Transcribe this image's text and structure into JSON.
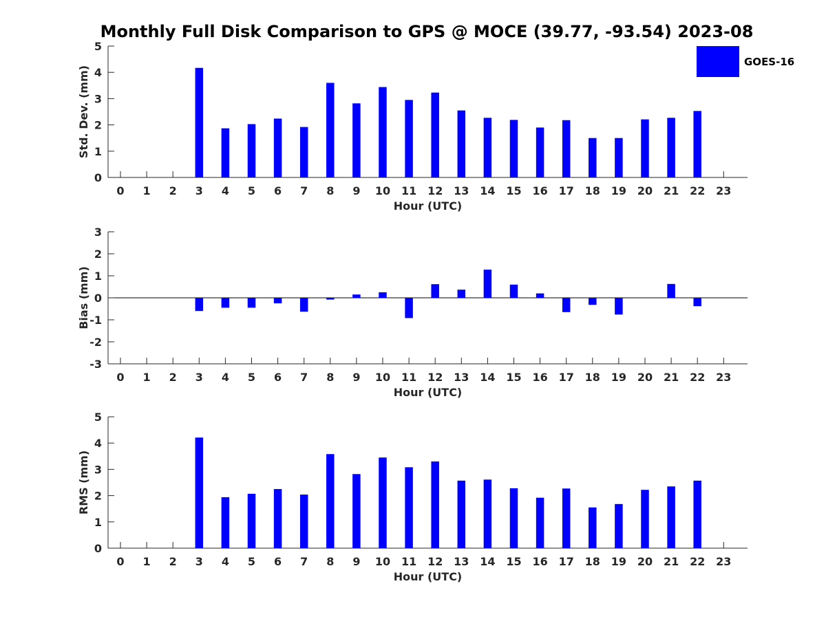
{
  "title": "Monthly Full Disk Comparison to GPS @ MOCE (39.77, -93.54) 2023-08",
  "legend": {
    "label": "GOES-16",
    "color": "#0000ff"
  },
  "chart_data": [
    {
      "type": "bar",
      "xlabel": "Hour (UTC)",
      "ylabel": "Std. Dev. (mm)",
      "ylim": [
        0,
        5
      ],
      "yticks": [
        0,
        1,
        2,
        3,
        4,
        5
      ],
      "categories": [
        0,
        1,
        2,
        3,
        4,
        5,
        6,
        7,
        8,
        9,
        10,
        11,
        12,
        13,
        14,
        15,
        16,
        17,
        18,
        19,
        20,
        21,
        22,
        23
      ],
      "series": [
        {
          "name": "GOES-16",
          "values": [
            null,
            null,
            null,
            4.17,
            1.87,
            2.03,
            2.24,
            1.92,
            3.6,
            2.82,
            3.44,
            2.95,
            3.23,
            2.55,
            2.27,
            2.19,
            1.9,
            2.18,
            1.5,
            1.5,
            2.21,
            2.27,
            2.53,
            null
          ]
        }
      ],
      "grid": false
    },
    {
      "type": "bar",
      "xlabel": "Hour (UTC)",
      "ylabel": "Bias (mm)",
      "ylim": [
        -3,
        3
      ],
      "yticks": [
        -3,
        -2,
        -1,
        0,
        1,
        2,
        3
      ],
      "categories": [
        0,
        1,
        2,
        3,
        4,
        5,
        6,
        7,
        8,
        9,
        10,
        11,
        12,
        13,
        14,
        15,
        16,
        17,
        18,
        19,
        20,
        21,
        22,
        23
      ],
      "series": [
        {
          "name": "GOES-16",
          "values": [
            null,
            null,
            null,
            -0.6,
            -0.45,
            -0.45,
            -0.25,
            -0.63,
            -0.08,
            0.15,
            0.25,
            -0.92,
            0.62,
            0.37,
            1.28,
            0.6,
            0.2,
            -0.65,
            -0.32,
            -0.76,
            null,
            0.63,
            -0.38,
            null
          ]
        }
      ],
      "grid": false,
      "zero_line": true
    },
    {
      "type": "bar",
      "xlabel": "Hour (UTC)",
      "ylabel": "RMS (mm)",
      "ylim": [
        0,
        5
      ],
      "yticks": [
        0,
        1,
        2,
        3,
        4,
        5
      ],
      "categories": [
        0,
        1,
        2,
        3,
        4,
        5,
        6,
        7,
        8,
        9,
        10,
        11,
        12,
        13,
        14,
        15,
        16,
        17,
        18,
        19,
        20,
        21,
        22,
        23
      ],
      "series": [
        {
          "name": "GOES-16",
          "values": [
            null,
            null,
            null,
            4.21,
            1.94,
            2.07,
            2.25,
            2.04,
            3.58,
            2.82,
            3.45,
            3.08,
            3.3,
            2.57,
            2.61,
            2.28,
            1.92,
            2.27,
            1.55,
            1.68,
            2.22,
            2.35,
            2.57,
            null
          ]
        }
      ],
      "grid": false
    }
  ]
}
